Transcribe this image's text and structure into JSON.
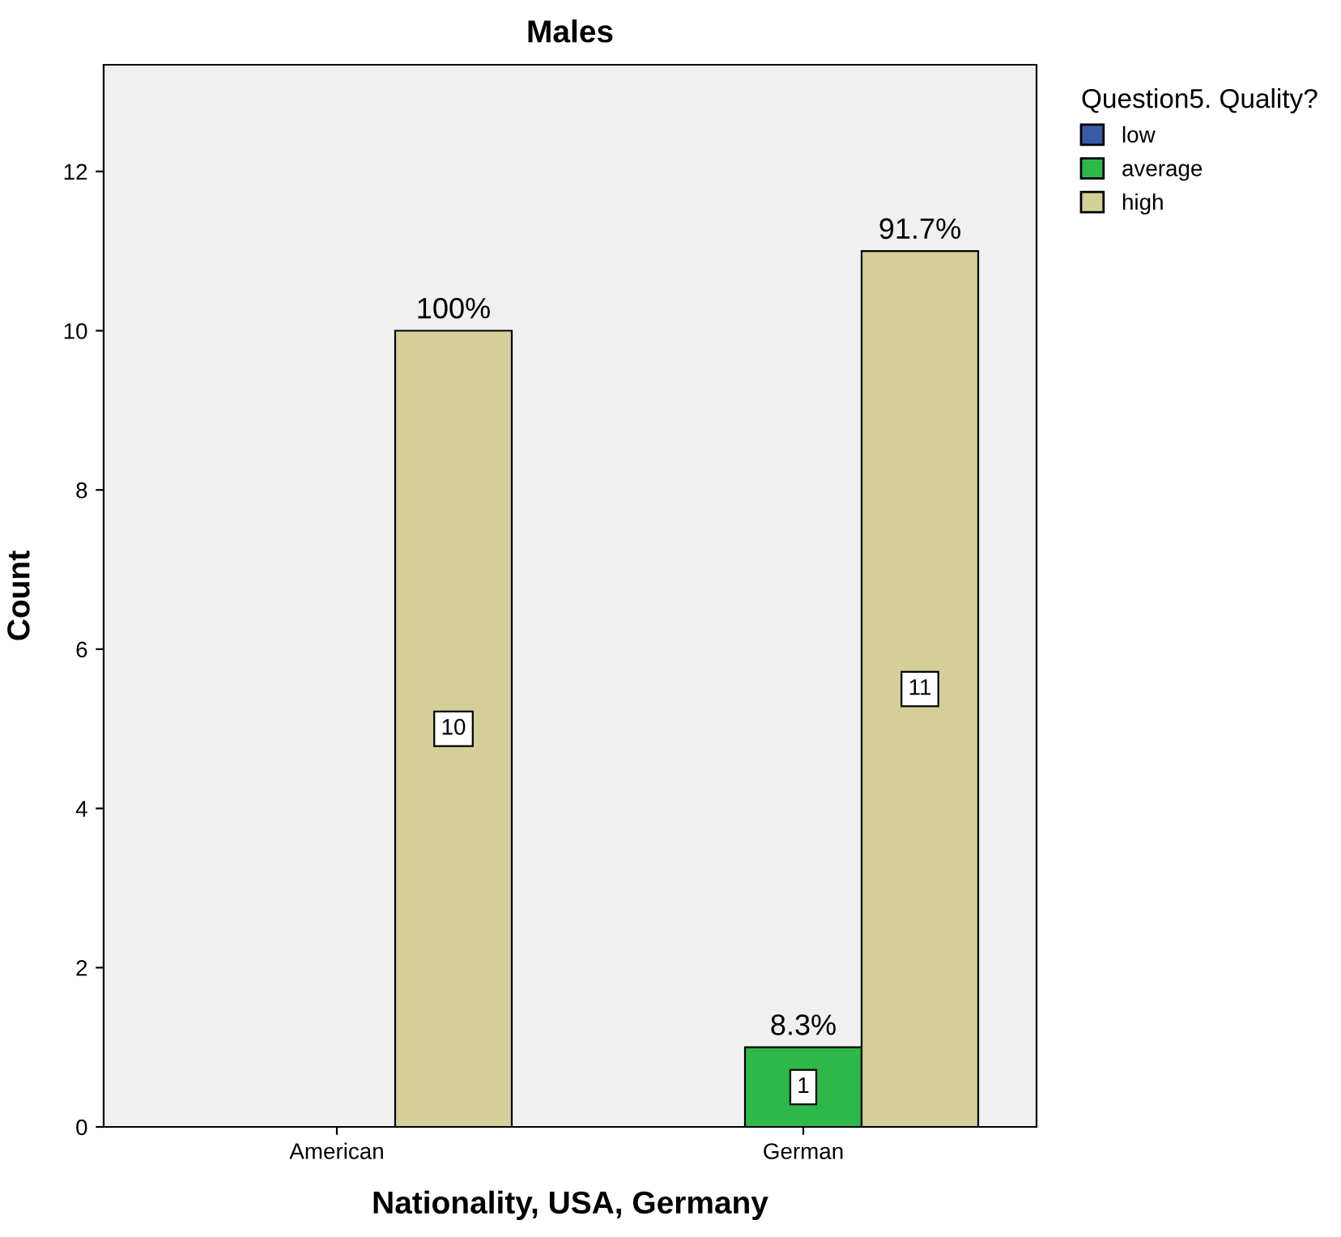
{
  "chart_data": {
    "type": "bar",
    "title": "Males",
    "xlabel": "Nationality, USA, Germany",
    "ylabel": "Count",
    "legend_title": "Question5. Quality?",
    "categories": [
      "American",
      "German"
    ],
    "series": [
      {
        "name": "low",
        "color": "#3a5aa8",
        "values": [
          null,
          null
        ]
      },
      {
        "name": "average",
        "color": "#2fb84a",
        "values": [
          null,
          1
        ]
      },
      {
        "name": "high",
        "color": "#d4cf98",
        "values": [
          10,
          11
        ]
      }
    ],
    "annotations": [
      "100%",
      "8.3%",
      "91.7%"
    ],
    "ylim": [
      0,
      13.34
    ],
    "yticks": [
      0,
      2,
      4,
      6,
      8,
      10,
      12
    ],
    "grid": false,
    "legend": "top right",
    "data_labels": true
  }
}
